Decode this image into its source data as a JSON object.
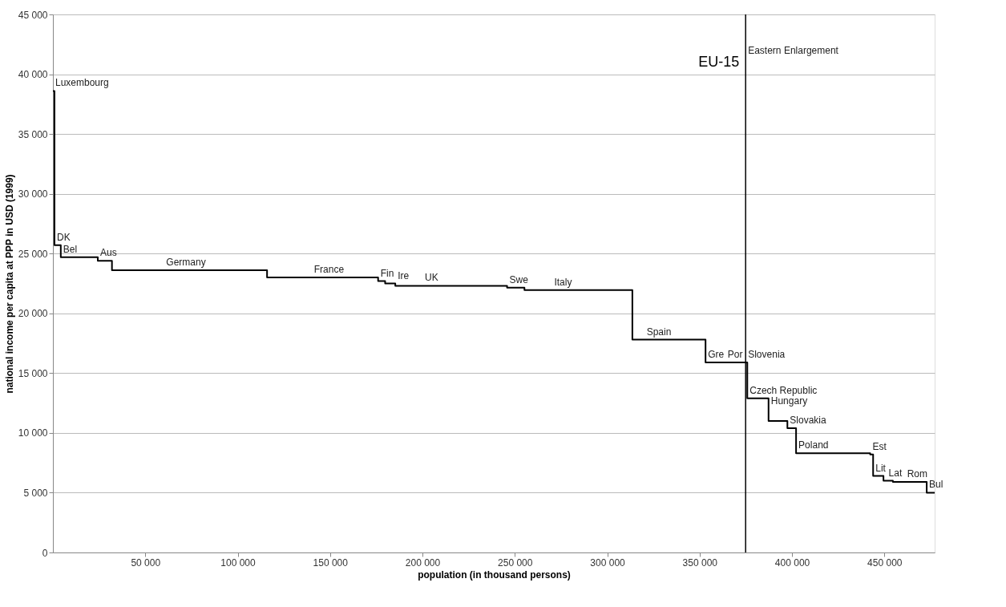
{
  "chart_data": {
    "type": "step",
    "xlabel": "population (in thousand persons)",
    "ylabel": "national income per capita at PPP in USD (1999)",
    "x": [
      0,
      850,
      4260,
      24290,
      31960,
      115900,
      176000,
      179800,
      185300,
      245800,
      255200,
      313600,
      353200,
      363900,
      374900,
      375800,
      387300,
      397500,
      402200,
      442300,
      443900,
      449500,
      454600,
      472900,
      477200
    ],
    "series": [
      {
        "color": "#000000",
        "values": [
          38600,
          25700,
          24700,
          24400,
          23600,
          23000,
          22700,
          22500,
          22300,
          22150,
          21950,
          17800,
          15900,
          15900,
          15900,
          12900,
          11000,
          10400,
          8300,
          8200,
          6400,
          6000,
          5900,
          5000,
          5000
        ]
      }
    ],
    "xlim": [
      0,
      477200
    ],
    "ylim": [
      0,
      45000
    ],
    "xticks": [
      {
        "value": 50000,
        "label": "50 000"
      },
      {
        "value": 100000,
        "label": "100 000"
      },
      {
        "value": 150000,
        "label": "150 000"
      },
      {
        "value": 200000,
        "label": "200 000"
      },
      {
        "value": 250000,
        "label": "250 000"
      },
      {
        "value": 300000,
        "label": "300 000"
      },
      {
        "value": 350000,
        "label": "350 000"
      },
      {
        "value": 400000,
        "label": "400 000"
      },
      {
        "value": 450000,
        "label": "450 000"
      }
    ],
    "yticks": [
      0,
      {
        "value": 5000,
        "label": "5 000"
      },
      {
        "value": 10000,
        "label": "10 000"
      },
      {
        "value": 15000,
        "label": "15 000"
      },
      {
        "value": 20000,
        "label": "20 000"
      },
      {
        "value": 25000,
        "label": "25 000"
      },
      {
        "value": 30000,
        "label": "30 000"
      },
      {
        "value": 35000,
        "label": "35 000"
      },
      {
        "value": 40000,
        "label": "40 000"
      },
      {
        "value": 45000,
        "label": "45 000"
      }
    ],
    "grid": "y",
    "ref_lines": [
      {
        "axis": "x",
        "value": 374900,
        "color": "#000000",
        "label": "EU-15"
      }
    ],
    "annotations": [
      {
        "text": "Luxembourg",
        "x": 0,
        "y": 38600
      },
      {
        "text": "DK",
        "x": 850,
        "y": 25700
      },
      {
        "text": "Bel",
        "x": 4260,
        "y": 24700
      },
      {
        "text": "Aus",
        "x": 24290,
        "y": 24400
      },
      {
        "text": "Germany",
        "x": 60000,
        "y": 23600
      },
      {
        "text": "France",
        "x": 140000,
        "y": 23000
      },
      {
        "text": "Fin",
        "x": 176000,
        "y": 22700
      },
      {
        "text": "Ire",
        "x": 185300,
        "y": 22500
      },
      {
        "text": "UK",
        "x": 200000,
        "y": 22300
      },
      {
        "text": "Swe",
        "x": 245800,
        "y": 22150
      },
      {
        "text": "Italy",
        "x": 270000,
        "y": 21950
      },
      {
        "text": "Spain",
        "x": 320000,
        "y": 17800
      },
      {
        "text": "Gre",
        "x": 353200,
        "y": 15900
      },
      {
        "text": "Por",
        "x": 363900,
        "y": 15900
      },
      {
        "text": "Slovenia",
        "x": 374900,
        "y": 15900
      },
      {
        "text": "Czech Republic",
        "x": 375800,
        "y": 12900
      },
      {
        "text": "Hungary",
        "x": 387300,
        "y": 12000
      },
      {
        "text": "Slovakia",
        "x": 397500,
        "y": 10400
      },
      {
        "text": "Poland",
        "x": 402200,
        "y": 8300
      },
      {
        "text": "Est",
        "x": 442300,
        "y": 8200
      },
      {
        "text": "Lit",
        "x": 443900,
        "y": 6400
      },
      {
        "text": "Lat",
        "x": 451000,
        "y": 6000
      },
      {
        "text": "Rom",
        "x": 461000,
        "y": 5900
      },
      {
        "text": "Bul",
        "x": 472900,
        "y": 5000
      },
      {
        "text": "Eastern Enlargement",
        "x": 374900,
        "y": 41300
      }
    ]
  }
}
